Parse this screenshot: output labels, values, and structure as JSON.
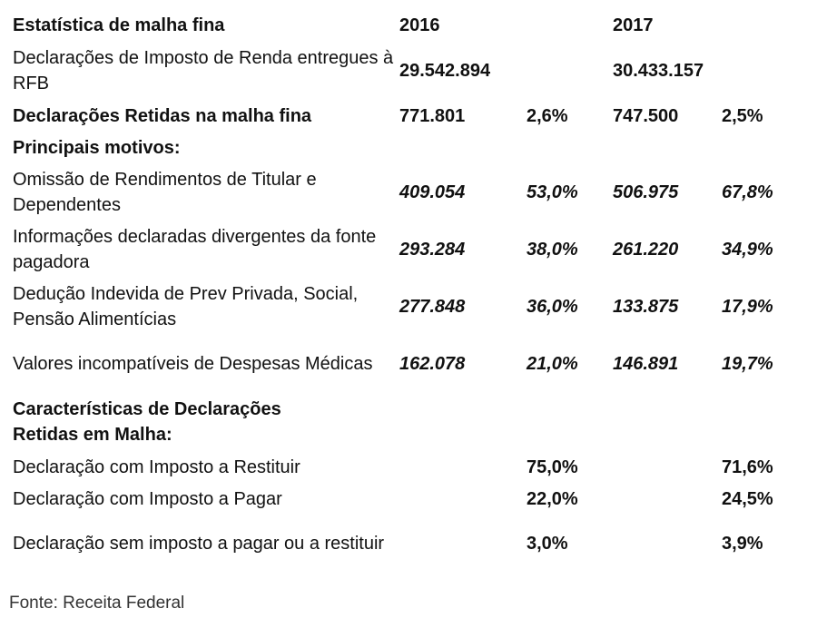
{
  "header": {
    "title": "Estatística de malha fina",
    "col_2016": "2016",
    "col_2017": "2017"
  },
  "rows": [
    {
      "label": "Declarações de Imposto de Renda entregues à RFB",
      "v2016": "29.542.894",
      "p2016": "",
      "v2017": "30.433.157",
      "p2017": ""
    },
    {
      "label": "Declarações Retidas na malha fina",
      "v2016": "771.801",
      "p2016": "2,6%",
      "v2017": "747.500",
      "p2017": "2,5%"
    }
  ],
  "motives_title": "Principais motivos:",
  "motives": [
    {
      "label": "Omissão de Rendimentos de Titular e Dependentes",
      "v2016": "409.054",
      "p2016": "53,0%",
      "v2017": "506.975",
      "p2017": "67,8%"
    },
    {
      "label": "Informações declaradas divergentes da fonte pagadora",
      "v2016": "293.284",
      "p2016": "38,0%",
      "v2017": "261.220",
      "p2017": "34,9%"
    },
    {
      "label": "Dedução Indevida de Prev Privada, Social, Pensão Alimentícias",
      "v2016": "277.848",
      "p2016": "36,0%",
      "v2017": "133.875",
      "p2017": "17,9%"
    },
    {
      "label": "Valores incompatíveis de Despesas Médicas",
      "v2016": "162.078",
      "p2016": "21,0%",
      "v2017": "146.891",
      "p2017": "19,7%"
    }
  ],
  "characteristics_title": "Características de Declarações Retidas em Malha:",
  "characteristics": [
    {
      "label": "Declaração com Imposto a Restituir",
      "p2016": "75,0%",
      "p2017": "71,6%"
    },
    {
      "label": "Declaração com Imposto a Pagar",
      "p2016": "22,0%",
      "p2017": "24,5%"
    },
    {
      "label": "Declaração sem imposto a pagar ou a restituir",
      "p2016": "3,0%",
      "p2017": "3,9%"
    }
  ],
  "source": "Fonte: Receita Federal"
}
